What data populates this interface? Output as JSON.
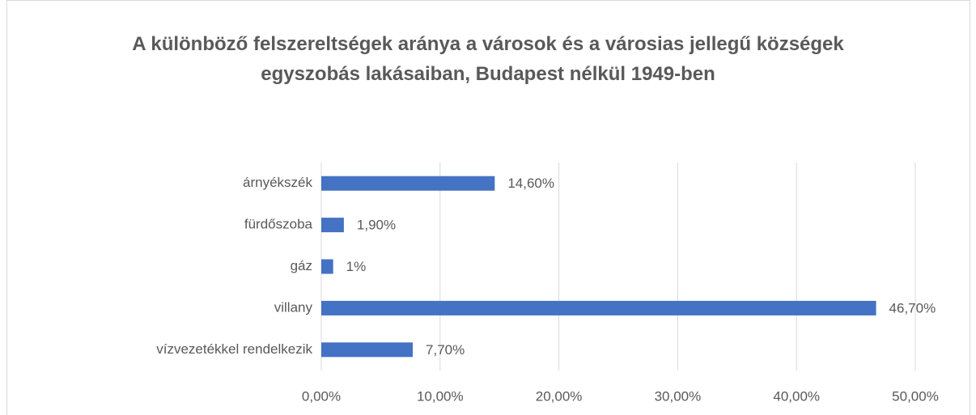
{
  "chart_data": {
    "type": "bar",
    "orientation": "horizontal",
    "title": "A különböző felszereltségek aránya a városok és a városias jellegű községek egyszobás lakásaiban, Budapest nélkül 1949-ben",
    "categories": [
      "árnyékszék",
      "fürdőszoba",
      "gáz",
      "villany",
      "vízvezetékkel rendelkezik"
    ],
    "values": [
      14.6,
      1.9,
      1,
      46.7,
      7.7
    ],
    "value_labels": [
      "14,60%",
      "1,90%",
      "1%",
      "46,70%",
      "7,70%"
    ],
    "color": "#4472c4",
    "xlim": [
      0,
      50
    ],
    "xticks": [
      {
        "value": 0,
        "label": "0,00%"
      },
      {
        "value": 10,
        "label": "10,00%"
      },
      {
        "value": 20,
        "label": "20,00%"
      },
      {
        "value": 30,
        "label": "30,00%"
      },
      {
        "value": 40,
        "label": "40,00%"
      },
      {
        "value": 50,
        "label": "50,00%"
      }
    ],
    "grid": true
  }
}
